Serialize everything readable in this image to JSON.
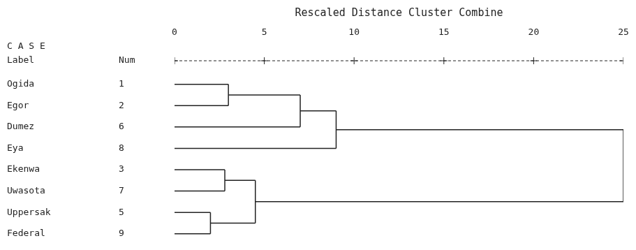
{
  "chart_data": {
    "type": "dendrogram",
    "title": "Rescaled Distance Cluster Combine",
    "header": "C A S E",
    "columns": [
      "Label",
      "Num"
    ],
    "categories": [
      "Ogida",
      "Egor",
      "Dumez",
      "Eya",
      "Ekenwa",
      "Uwasota",
      "Uppersak",
      "Federal"
    ],
    "case_numbers": [
      1,
      2,
      6,
      8,
      3,
      7,
      5,
      9
    ],
    "tree": {
      "distance": 25.0,
      "children": [
        {
          "distance": 9.0,
          "children": [
            {
              "distance": 7.0,
              "children": [
                {
                  "distance": 3.0,
                  "children": [
                    "Ogida",
                    "Egor"
                  ]
                },
                "Dumez"
              ]
            },
            "Eya"
          ]
        },
        {
          "distance": 4.5,
          "children": [
            {
              "distance": 2.8,
              "children": [
                "Ekenwa",
                "Uwasota"
              ]
            },
            {
              "distance": 2.0,
              "children": [
                "Uppersak",
                "Federal"
              ]
            }
          ]
        }
      ]
    },
    "xlim": [
      0,
      25
    ],
    "xticks": [
      0,
      5,
      10,
      15,
      20,
      25
    ],
    "color": "#222222",
    "grid": false
  }
}
